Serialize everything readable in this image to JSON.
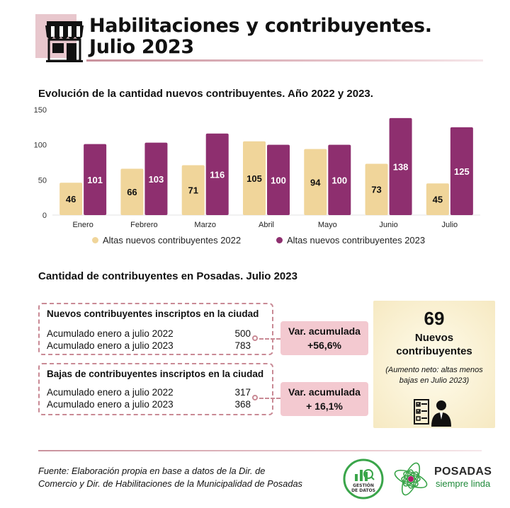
{
  "header": {
    "title_line1": "Habilitaciones y contribuyentes.",
    "title_line2": "Julio 2023",
    "icon": "shop-awning-icon"
  },
  "chart_title": "Evolución de la cantidad nuevos contribuyentes. Año 2022 y 2023.",
  "chart_data": {
    "type": "bar",
    "categories": [
      "Enero",
      "Febrero",
      "Marzo",
      "Abril",
      "Mayo",
      "Junio",
      "Julio"
    ],
    "series": [
      {
        "name": "Altas nuevos contribuyentes 2022",
        "values": [
          46,
          66,
          71,
          105,
          94,
          73,
          45
        ],
        "color": "#f0d59a"
      },
      {
        "name": "Altas nuevos contribuyentes 2023",
        "values": [
          101,
          103,
          116,
          100,
          100,
          138,
          125
        ],
        "color": "#8e2f6f"
      }
    ],
    "yticks": [
      0,
      50,
      100,
      150
    ],
    "ylim": [
      0,
      150
    ],
    "legend": "bottom"
  },
  "section2_title": "Cantidad de contribuyentes en Posadas. Julio 2023",
  "nuevos": {
    "title": "Nuevos contribuyentes inscriptos en la ciudad",
    "rows": [
      {
        "label": "Acumulado enero a julio 2022",
        "value": "500"
      },
      {
        "label": "Acumulado enero a julio 2023",
        "value": "783"
      }
    ],
    "var_label": "Var. acumulada",
    "var_value": "+56,6%"
  },
  "bajas": {
    "title": "Bajas de contribuyentes inscriptos en la ciudad",
    "rows": [
      {
        "label": "Acumulado enero a julio 2022",
        "value": "317"
      },
      {
        "label": "Acumulado enero a julio 2023",
        "value": "368"
      }
    ],
    "var_label": "Var. acumulada",
    "var_value": "+ 16,1%"
  },
  "summary": {
    "number": "69",
    "label_line1": "Nuevos",
    "label_line2": "contribuyentes",
    "note": "(Aumento neto: altas menos bajas en Julio 2023)",
    "icon": "person-checklist-icon"
  },
  "footer": {
    "source_line1": "Fuente: Elaboración propia en base a datos de la Dir. de",
    "source_line2": "Comercio  y Dir. de Habilitaciones de la Municipalidad de Posadas",
    "logo1_text1": "GESTIÓN",
    "logo1_text2": "DE DATOS",
    "logo2_title": "POSADAS",
    "logo2_subtitle": "siempre linda"
  }
}
